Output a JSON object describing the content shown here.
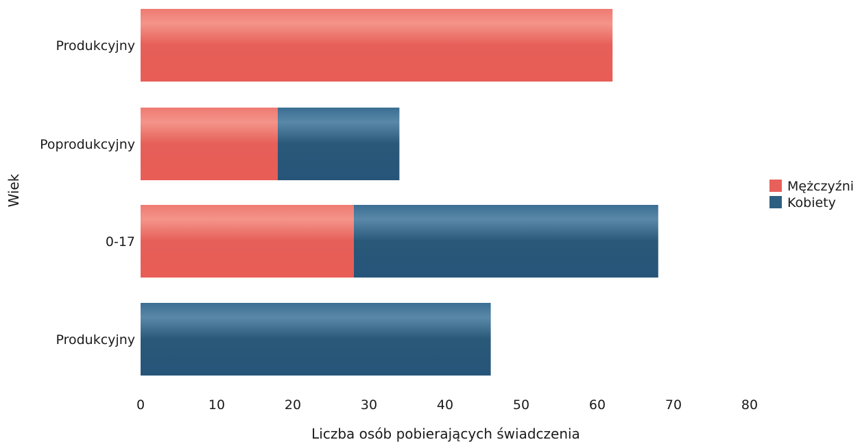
{
  "chart_data": {
    "type": "bar",
    "orientation": "horizontal",
    "stacked": true,
    "categories": [
      "Produkcyjny",
      "Poprodukcyjny",
      "0-17",
      "Produkcyjny"
    ],
    "series": [
      {
        "name": "Mężczyźni",
        "color": "#e8605a",
        "values": [
          62,
          18,
          28,
          0
        ]
      },
      {
        "name": "Kobiety",
        "color": "#2f5f80",
        "values": [
          0,
          16,
          40,
          46
        ]
      }
    ],
    "xlabel": "Liczba osób pobierających świadczenia",
    "ylabel": "Wiek",
    "xlim": [
      0,
      80
    ],
    "xticks": [
      0,
      10,
      20,
      30,
      40,
      50,
      60,
      70,
      80
    ],
    "grid": false,
    "legend_position": "right"
  }
}
